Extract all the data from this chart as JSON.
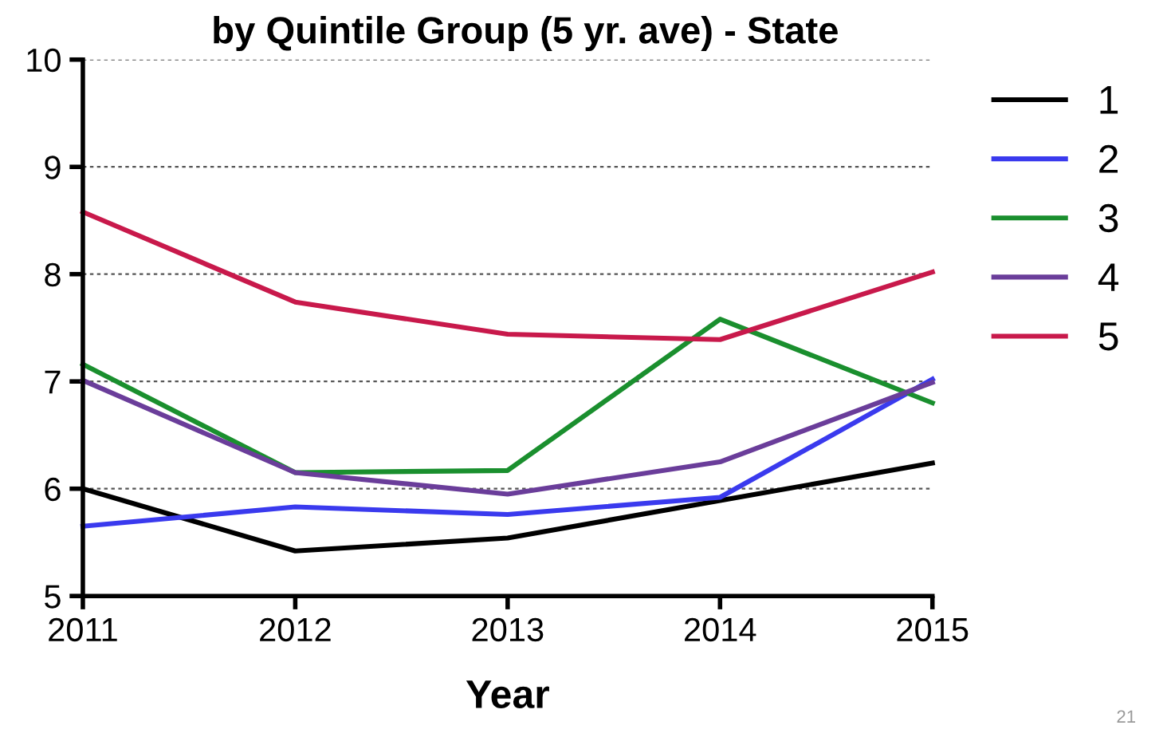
{
  "chart_data": {
    "type": "line",
    "title": "by Quintile Group (5 yr. ave) - State",
    "xlabel": "Year",
    "x": [
      2011,
      2012,
      2013,
      2014,
      2015
    ],
    "series": [
      {
        "name": "1",
        "color": "#000000",
        "values": [
          6.0,
          5.42,
          5.54,
          5.89,
          6.24
        ]
      },
      {
        "name": "2",
        "color": "#3a3aee",
        "values": [
          5.65,
          5.83,
          5.76,
          5.92,
          7.02
        ]
      },
      {
        "name": "3",
        "color": "#1a8f2e",
        "values": [
          7.16,
          6.15,
          6.17,
          7.58,
          6.8
        ]
      },
      {
        "name": "4",
        "color": "#6a3d9a",
        "values": [
          7.01,
          6.15,
          5.95,
          6.25,
          6.99
        ]
      },
      {
        "name": "5",
        "color": "#c8194b",
        "values": [
          8.58,
          7.74,
          7.44,
          7.39,
          8.02
        ]
      }
    ],
    "xlim": [
      2011,
      2015
    ],
    "xticks": [
      2011,
      2012,
      2013,
      2014,
      2015
    ],
    "ylim": [
      5,
      10
    ],
    "yticks": [
      5,
      6,
      7,
      8,
      9,
      10
    ],
    "grid": "y",
    "legend": "right",
    "marker": "none",
    "line_style": "solid",
    "annotations": [
      "21"
    ]
  }
}
